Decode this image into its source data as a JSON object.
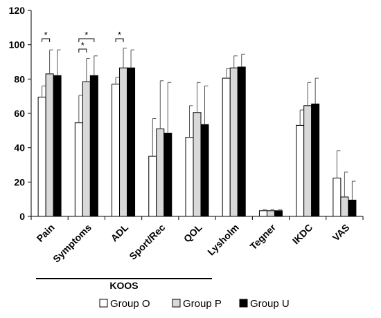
{
  "chart_data": {
    "type": "bar",
    "title": "",
    "xlabel": "",
    "ylabel": "",
    "ylim": [
      0,
      120
    ],
    "yticks": [
      0,
      20,
      40,
      60,
      80,
      100,
      120
    ],
    "categories": [
      "Pain",
      "Symptoms",
      "ADL",
      "Sport/Rec",
      "QOL",
      "Lysholm",
      "Tegner",
      "IKDC",
      "VAS"
    ],
    "series": [
      {
        "name": "Group O",
        "color": "#ffffff",
        "values": [
          69.5,
          54.5,
          77,
          35,
          46,
          80.5,
          3.3,
          53,
          22.3
        ],
        "errors": [
          6.5,
          16,
          4,
          22,
          18.5,
          5.5,
          0.6,
          9,
          16
        ]
      },
      {
        "name": "Group P",
        "color": "#d9d9d9",
        "values": [
          83,
          78.5,
          86.5,
          51,
          60.5,
          86.5,
          3.3,
          64.5,
          11.3
        ],
        "errors": [
          14,
          13.5,
          11.5,
          28,
          17.5,
          7,
          0.6,
          13.5,
          14.5
        ]
      },
      {
        "name": "Group U",
        "color": "#000000",
        "values": [
          82,
          82,
          86.5,
          48.5,
          53.5,
          87,
          3.3,
          65.5,
          9.5
        ],
        "errors": [
          15,
          11.5,
          10.5,
          29.5,
          22.5,
          7.5,
          0.6,
          15,
          11
        ]
      }
    ],
    "significance": [
      {
        "category": "Pain",
        "from_series": 0,
        "to_series": 1,
        "label": "*"
      },
      {
        "category": "Symptoms",
        "from_series": 0,
        "to_series": 1,
        "label": "*"
      },
      {
        "category": "Symptoms",
        "from_series": 0,
        "to_series": 2,
        "label": "*"
      },
      {
        "category": "ADL",
        "from_series": 0,
        "to_series": 1,
        "label": "*"
      }
    ],
    "category_group": {
      "label": "KOOS",
      "categories": [
        "Pain",
        "Symptoms",
        "ADL",
        "Sport/Rec",
        "QOL"
      ]
    },
    "legend_position": "bottom",
    "grid": false
  }
}
